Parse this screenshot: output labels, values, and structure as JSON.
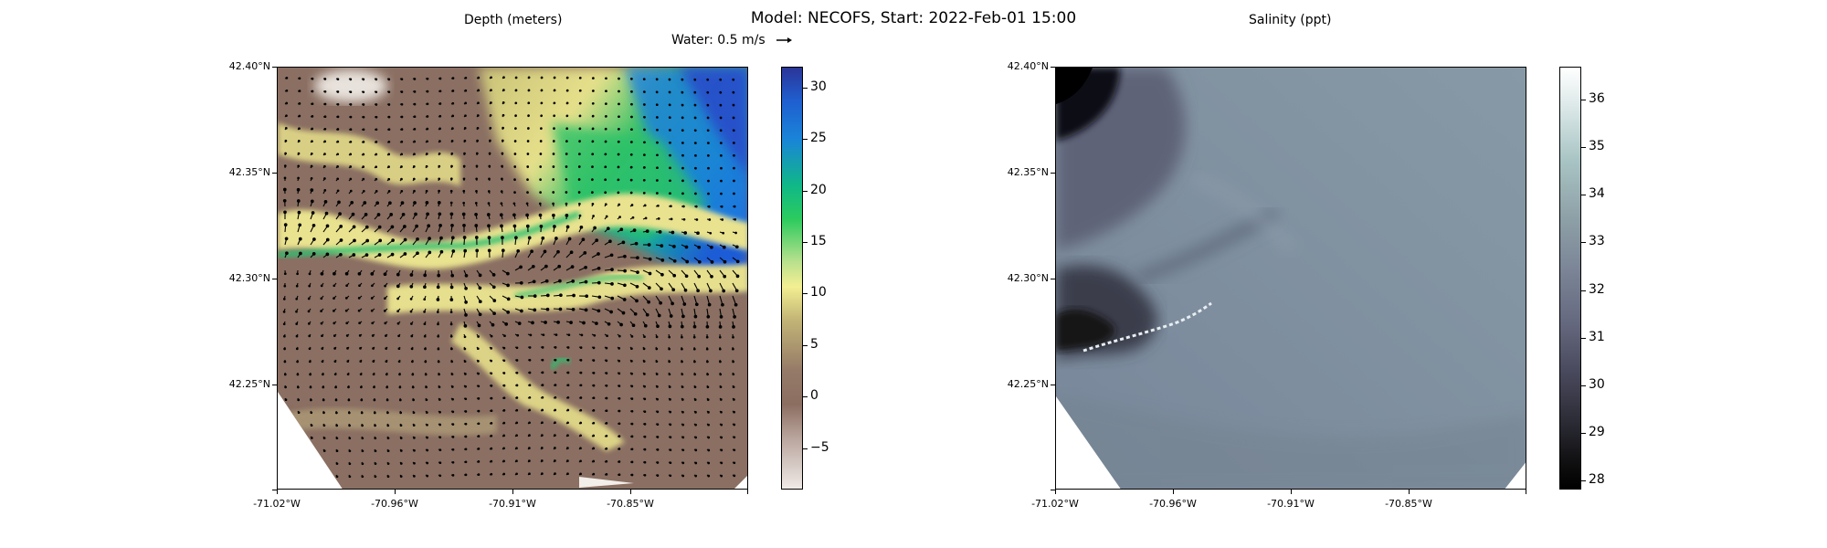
{
  "title": "Model: NECOFS, Start: 2022-Feb-01 15:00",
  "quiver_key": "Water: 0.5 m/s",
  "left_panel": {
    "title": "Depth (meters)",
    "lat_labels": [
      "42.40°N",
      "42.35°N",
      "42.30°N",
      "42.25°N"
    ],
    "lon_labels": [
      "-71.02°W",
      "-70.96°W",
      "-70.91°W",
      "-70.85°W"
    ],
    "colorbar_ticks": [
      "30",
      "25",
      "20",
      "15",
      "10",
      "5",
      "0",
      "−5"
    ],
    "colorbar_values": [
      30,
      25,
      20,
      15,
      10,
      5,
      0,
      -5
    ],
    "colorbar_range": [
      -9,
      32
    ]
  },
  "right_panel": {
    "title": "Salinity (ppt)",
    "lat_labels": [
      "42.40°N",
      "42.35°N",
      "42.30°N",
      "42.25°N"
    ],
    "lon_labels": [
      "-71.02°W",
      "-70.96°W",
      "-70.91°W",
      "-70.85°W"
    ],
    "colorbar_ticks": [
      "36",
      "35",
      "34",
      "33",
      "32",
      "31",
      "30",
      "29",
      "28"
    ],
    "colorbar_values": [
      36,
      35,
      34,
      33,
      32,
      31,
      30,
      29,
      28
    ],
    "colorbar_range": [
      27.8,
      36.7
    ]
  }
}
